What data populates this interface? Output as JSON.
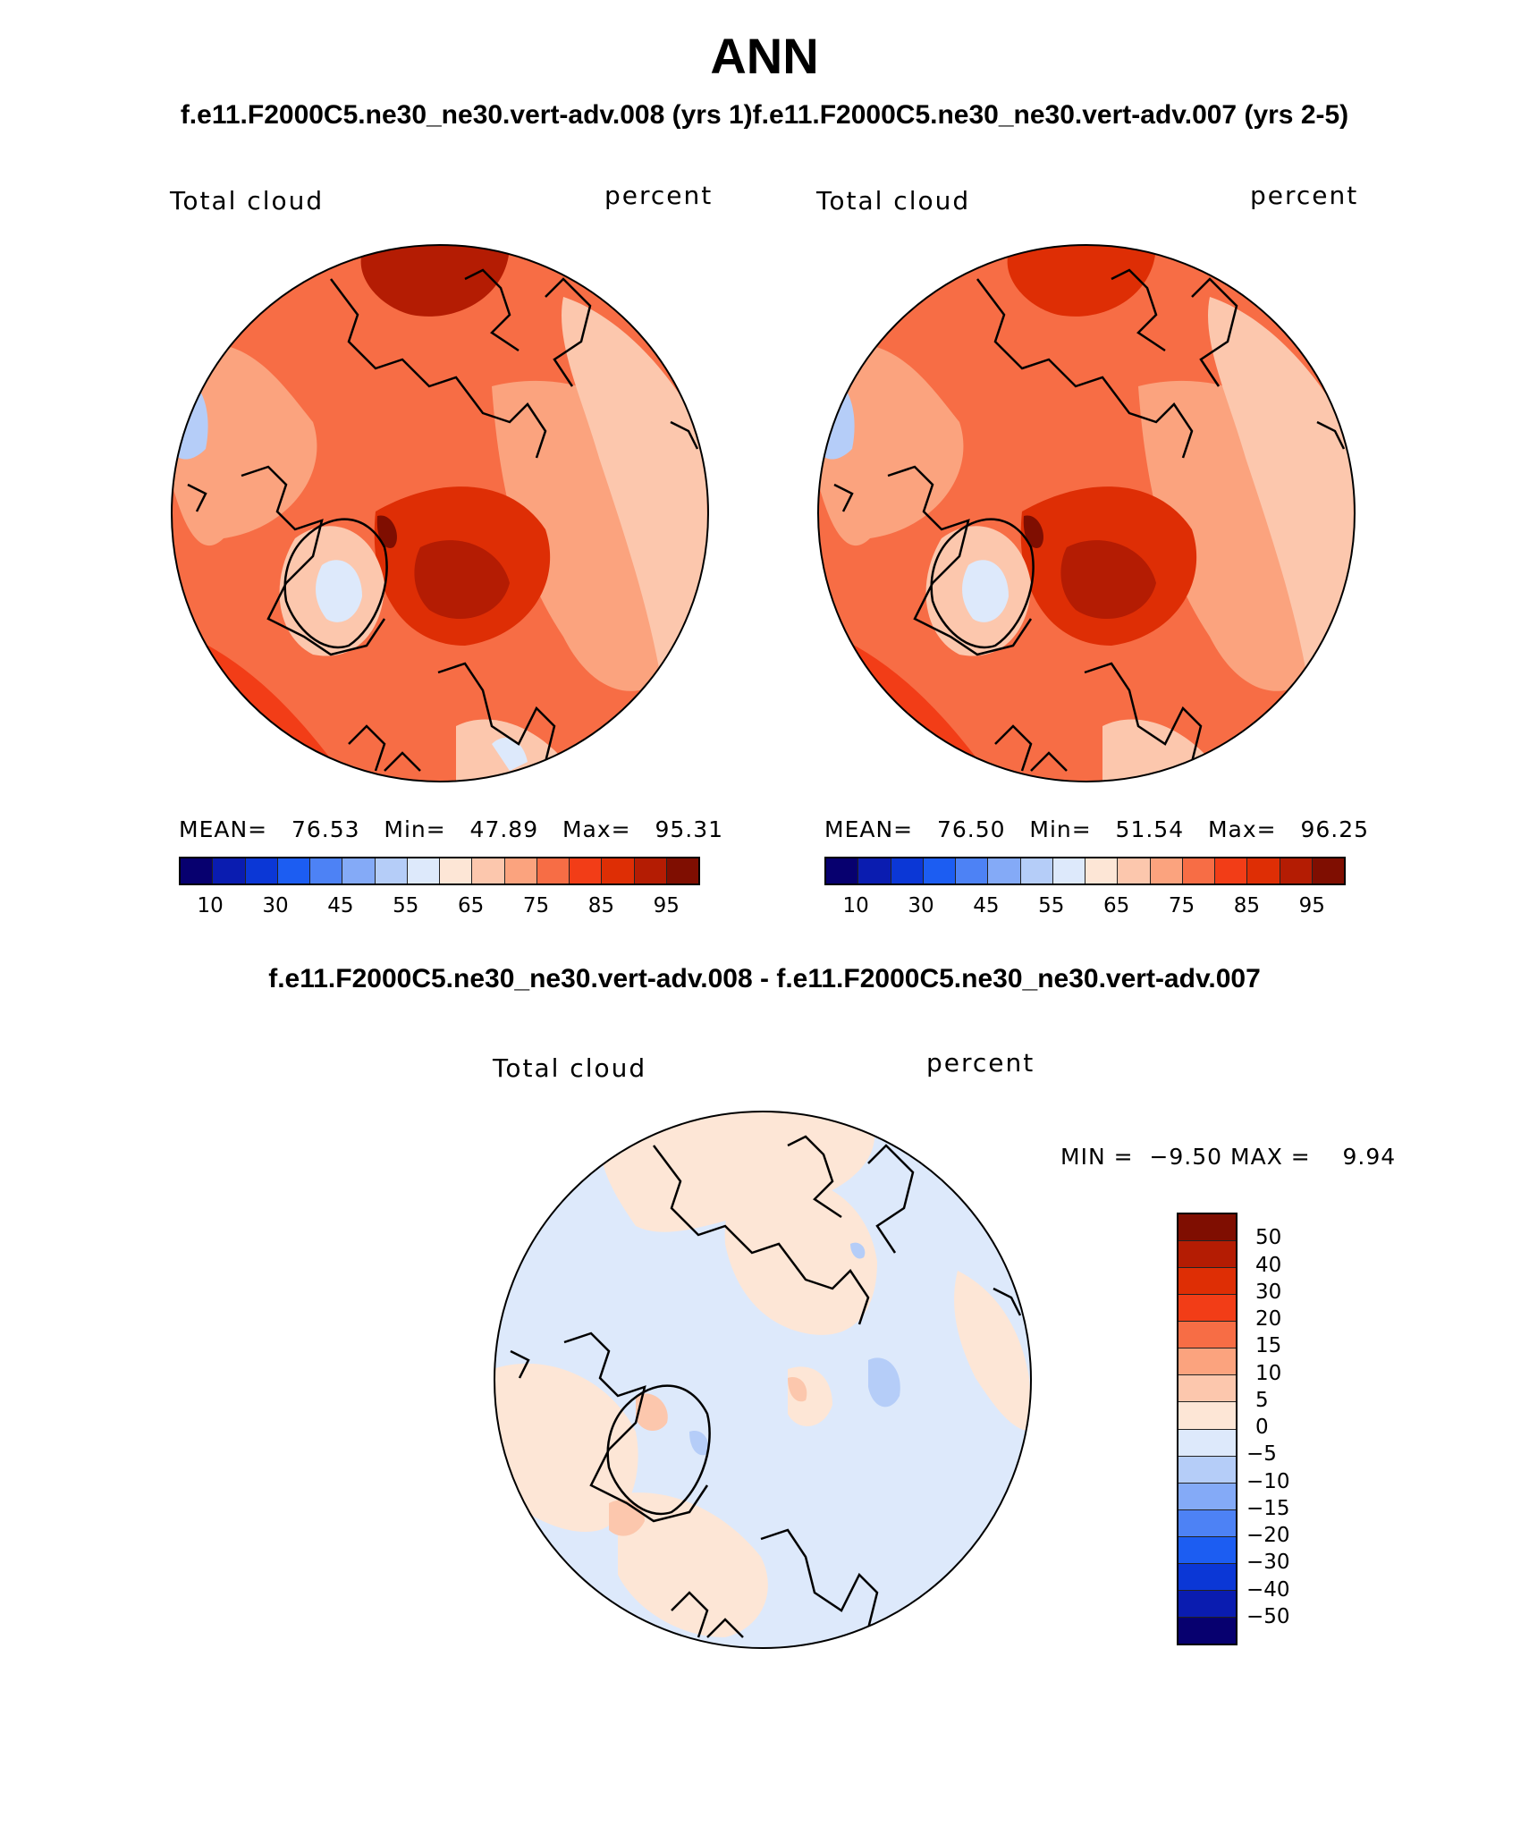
{
  "chart_data": {
    "type": "heatmap",
    "title": "ANN",
    "subtitle": "f.e11.F2000C5.ne30_ne30.vert-adv.008 (yrs 1)f.e11.F2000C5.ne30_ne30.vert-adv.007 (yrs 2-5)",
    "diff_title": "f.e11.F2000C5.ne30_ne30.vert-adv.008 - f.e11.F2000C5.ne30_ne30.vert-adv.007",
    "panels": [
      {
        "variable": "Total cloud",
        "units": "percent",
        "mean_label": "MEAN=",
        "mean": "76.53",
        "min_label": "Min=",
        "min": "47.89",
        "max_label": "Max=",
        "max": "95.31"
      },
      {
        "variable": "Total cloud",
        "units": "percent",
        "mean_label": "MEAN=",
        "mean": "76.50",
        "min_label": "Min=",
        "min": "51.54",
        "max_label": "Max=",
        "max": "96.25"
      }
    ],
    "diff_panel": {
      "variable": "Total cloud",
      "units": "percent",
      "min_label": "MIN =",
      "min": "−9.50",
      "max_label": "MAX =",
      "max": "9.94"
    },
    "abs_colorbar": {
      "tick_labels": [
        "10",
        "30",
        "45",
        "55",
        "65",
        "75",
        "85",
        "95"
      ],
      "colors": [
        "#07006f",
        "#0a1cb0",
        "#0b37d6",
        "#1c5df2",
        "#4d82f5",
        "#84aaf7",
        "#b5cdf8",
        "#dde9fb",
        "#fde6d6",
        "#fcc7ad",
        "#fba37e",
        "#f76d45",
        "#f23d17",
        "#de2e05",
        "#b41c03",
        "#7f0e01"
      ]
    },
    "diff_colorbar": {
      "tick_labels": [
        "50",
        "40",
        "30",
        "20",
        "15",
        "10",
        "5",
        "0",
        "−5",
        "−10",
        "−15",
        "−20",
        "−30",
        "−40",
        "−50"
      ],
      "colors": [
        "#7f0e01",
        "#b41c03",
        "#de2e05",
        "#f23d17",
        "#f76d45",
        "#fba37e",
        "#fcc7ad",
        "#fde6d6",
        "#dde9fb",
        "#b5cdf8",
        "#84aaf7",
        "#4d82f5",
        "#1c5df2",
        "#0b37d6",
        "#0a1cb0",
        "#07006f"
      ]
    }
  }
}
